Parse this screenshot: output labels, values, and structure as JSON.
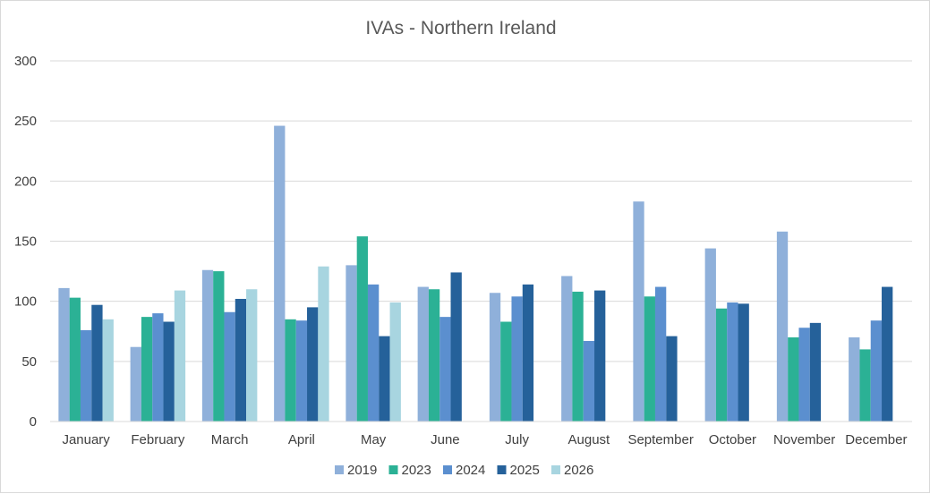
{
  "chart_data": {
    "type": "bar",
    "title": "IVAs - Northern Ireland",
    "xlabel": "",
    "ylabel": "",
    "ylim": [
      0,
      300
    ],
    "yticks": [
      0,
      50,
      100,
      150,
      200,
      250,
      300
    ],
    "grid": true,
    "legend_position": "bottom",
    "categories": [
      "January",
      "February",
      "March",
      "April",
      "May",
      "June",
      "July",
      "August",
      "September",
      "October",
      "November",
      "December"
    ],
    "series": [
      {
        "name": "2019",
        "color": "#8FB0DA",
        "values": [
          111,
          62,
          126,
          246,
          130,
          112,
          107,
          121,
          183,
          144,
          158,
          70
        ]
      },
      {
        "name": "2023",
        "color": "#2BB195",
        "values": [
          103,
          87,
          125,
          85,
          154,
          110,
          83,
          108,
          104,
          94,
          70,
          60
        ]
      },
      {
        "name": "2024",
        "color": "#5B8FCF",
        "values": [
          76,
          90,
          91,
          84,
          114,
          87,
          104,
          67,
          112,
          99,
          78,
          84
        ]
      },
      {
        "name": "2025",
        "color": "#25619A",
        "values": [
          97,
          83,
          102,
          95,
          71,
          124,
          114,
          109,
          71,
          98,
          82,
          112
        ]
      },
      {
        "name": "2026",
        "color": "#A8D5E0",
        "values": [
          85,
          109,
          110,
          129,
          99,
          null,
          null,
          null,
          null,
          null,
          null,
          null
        ]
      }
    ]
  }
}
